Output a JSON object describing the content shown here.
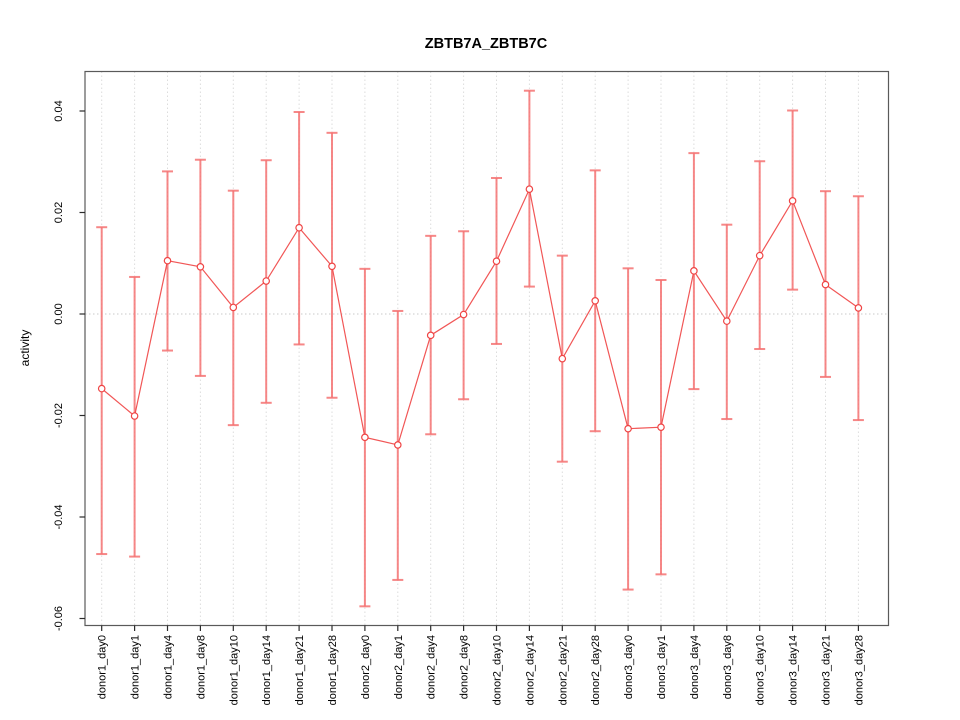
{
  "title": "ZBTB7A_ZBTB7C",
  "chart_data": {
    "type": "line",
    "title": "ZBTB7A_ZBTB7C",
    "xlabel": "",
    "ylabel": "activity",
    "categories": [
      "donor1_day0",
      "donor1_day1",
      "donor1_day4",
      "donor1_day8",
      "donor1_day10",
      "donor1_day14",
      "donor1_day21",
      "donor1_day28",
      "donor2_day0",
      "donor2_day1",
      "donor2_day4",
      "donor2_day8",
      "donor2_day10",
      "donor2_day14",
      "donor2_day21",
      "donor2_day28",
      "donor3_day0",
      "donor3_day1",
      "donor3_day4",
      "donor3_day8",
      "donor3_day10",
      "donor3_day14",
      "donor3_day21",
      "donor3_day28"
    ],
    "series": [
      {
        "name": "activity",
        "marker": "open-circle",
        "values": [
          -0.0147,
          -0.0201,
          0.0105,
          0.0093,
          0.0013,
          0.0065,
          0.017,
          0.0094,
          -0.0243,
          -0.0258,
          -0.0042,
          -0.0001,
          0.0104,
          0.0246,
          -0.0088,
          0.0026,
          -0.0226,
          -0.0223,
          0.0085,
          -0.0014,
          0.0115,
          0.0223,
          0.0058,
          0.0012
        ],
        "upper": [
          0.0171,
          0.0073,
          0.0281,
          0.0304,
          0.0243,
          0.0303,
          0.0398,
          0.0357,
          0.0089,
          0.0006,
          0.0154,
          0.0163,
          0.0268,
          0.044,
          0.0115,
          0.0283,
          0.009,
          0.0067,
          0.0317,
          0.0176,
          0.0301,
          0.0401,
          0.0242,
          0.0232
        ],
        "lower": [
          -0.0473,
          -0.0478,
          -0.0072,
          -0.0122,
          -0.0219,
          -0.0175,
          -0.006,
          -0.0165,
          -0.0576,
          -0.0524,
          -0.0237,
          -0.0168,
          -0.0059,
          0.0054,
          -0.0291,
          -0.0231,
          -0.0543,
          -0.0513,
          -0.0148,
          -0.0207,
          -0.0069,
          0.0048,
          -0.0124,
          -0.0209
        ]
      }
    ],
    "error_bars": true,
    "ylim": [
      -0.062,
      0.048
    ],
    "yticks": [
      0.04,
      0.02,
      0.0,
      -0.02,
      -0.04,
      -0.06
    ],
    "grid": "vertical dashed line per category, dotted horizontal line at zero",
    "legend_position": "none",
    "colors": {
      "series": "#EF4444",
      "error_bar": "#F47272",
      "grid": "#DCDCDC",
      "zero_line": "#C9C9C9",
      "axis_box": "#5A5A5A",
      "tick": "#2B2B2B",
      "text": "#000000",
      "background": "#FFFFFF"
    }
  }
}
